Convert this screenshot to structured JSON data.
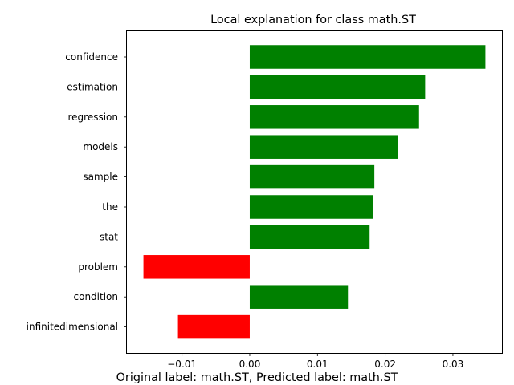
{
  "chart_data": {
    "type": "bar",
    "orientation": "horizontal",
    "title": "Local explanation for class math.ST",
    "caption": "Original label: math.ST, Predicted label: math.ST",
    "xlabel": "",
    "ylabel": "",
    "categories": [
      "confidence",
      "estimation",
      "regression",
      "models",
      "sample",
      "the",
      "stat",
      "problem",
      "condition",
      "infinitedimensional"
    ],
    "values": [
      0.0348,
      0.0259,
      0.025,
      0.0219,
      0.0184,
      0.0182,
      0.0177,
      -0.0157,
      0.0145,
      -0.0106
    ],
    "xlim": [
      -0.0182,
      0.0373
    ],
    "xticks": [
      -0.01,
      0.0,
      0.01,
      0.02,
      0.03
    ],
    "xtick_labels": [
      "−0.01",
      "0.00",
      "0.01",
      "0.02",
      "0.03"
    ],
    "colors": {
      "positive": "#008000",
      "negative": "#ff0000"
    },
    "grid": false,
    "legend": "none"
  }
}
